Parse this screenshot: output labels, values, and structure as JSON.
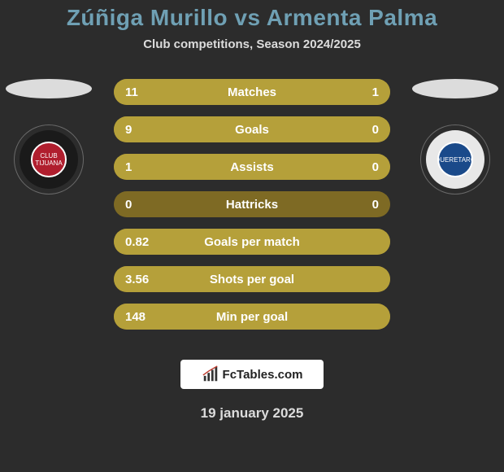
{
  "page": {
    "background_color": "#2c2c2c",
    "title_color": "#6fa0b4",
    "text_light": "#dcdcdc",
    "text_white": "#ffffff"
  },
  "header": {
    "title": "Zúñiga Murillo vs Armenta Palma",
    "title_fontsize": 28,
    "subtitle": "Club competitions, Season 2024/2025",
    "subtitle_fontsize": 15
  },
  "pedestal": {
    "color": "#dcdcdc"
  },
  "badge_left": {
    "ring_color": "#1a1a1a",
    "core_color": "#b01e2e",
    "text": "CLUB TIJUANA"
  },
  "badge_right": {
    "ring_color": "#e8e8e8",
    "core_color": "#1a4a8a",
    "text": "QUERETARO"
  },
  "bars": {
    "track_color": "#7e6a24",
    "fill_color": "#b5a03a",
    "value_color": "#ffffff",
    "label_color": "#ffffff",
    "rows": [
      {
        "label": "Matches",
        "left_val": "11",
        "right_val": "1",
        "left_pct": 91.7,
        "right_pct": 8.3
      },
      {
        "label": "Goals",
        "left_val": "9",
        "right_val": "0",
        "left_pct": 100,
        "right_pct": 0
      },
      {
        "label": "Assists",
        "left_val": "1",
        "right_val": "0",
        "left_pct": 100,
        "right_pct": 0
      },
      {
        "label": "Hattricks",
        "left_val": "0",
        "right_val": "0",
        "left_pct": 0,
        "right_pct": 0
      },
      {
        "label": "Goals per match",
        "left_val": "0.82",
        "right_val": "",
        "left_pct": 100,
        "right_pct": 0
      },
      {
        "label": "Shots per goal",
        "left_val": "3.56",
        "right_val": "",
        "left_pct": 100,
        "right_pct": 0
      },
      {
        "label": "Min per goal",
        "left_val": "148",
        "right_val": "",
        "left_pct": 100,
        "right_pct": 0
      }
    ]
  },
  "footer": {
    "logo_bg": "#ffffff",
    "logo_text": "FcTables.com",
    "date": "19 january 2025"
  }
}
